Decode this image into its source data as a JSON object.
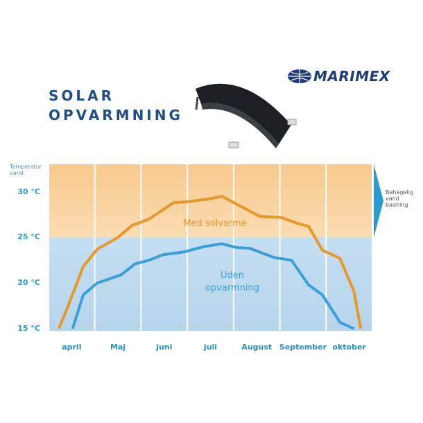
{
  "title": "SOLAR OPVARMNING",
  "logo": "MARIMEX",
  "chart_data": {
    "type": "line",
    "y_label": "Temperatur vand",
    "annotation": "Behagelig vand badning",
    "xlim": [
      0,
      7
    ],
    "xticks": [
      {
        "value": 0.5,
        "label": "april"
      },
      {
        "value": 1.5,
        "label": "Maj"
      },
      {
        "value": 2.5,
        "label": "juni"
      },
      {
        "value": 3.5,
        "label": "juli"
      },
      {
        "value": 4.5,
        "label": "August"
      },
      {
        "value": 5.5,
        "label": "September"
      },
      {
        "value": 6.5,
        "label": "oktober"
      }
    ],
    "ylim": [
      15,
      33
    ],
    "yticks": [
      {
        "value": 15,
        "label": "15 °C"
      },
      {
        "value": 20,
        "label": "20 °C"
      },
      {
        "value": 25,
        "label": "25 °C"
      },
      {
        "value": 30,
        "label": "30 °C"
      }
    ],
    "series": [
      {
        "name": "Med solvarme",
        "color": "#e8972a",
        "x": [
          0.22,
          0.37,
          0.75,
          1.05,
          1.5,
          1.8,
          2.17,
          2.7,
          3.0,
          3.45,
          3.75,
          4.12,
          4.57,
          5.02,
          5.4,
          5.62,
          5.92,
          6.3,
          6.6,
          6.75
        ],
        "values": [
          15,
          16.8,
          21.8,
          23.7,
          25,
          26.3,
          27,
          28.8,
          28.9,
          29.2,
          29.5,
          28.5,
          27.3,
          27.2,
          26.5,
          26.2,
          23.6,
          22.7,
          19.1,
          15
        ]
      },
      {
        "name": "Uden opvarmning",
        "color": "#3a9fd8",
        "x": [
          0.52,
          0.75,
          1.05,
          1.57,
          1.87,
          2.17,
          2.47,
          2.92,
          3.37,
          3.75,
          4.05,
          4.35,
          4.87,
          5.25,
          5.62,
          5.92,
          6.3,
          6.6
        ],
        "values": [
          15,
          18.7,
          20,
          20.9,
          22.1,
          22.5,
          23.1,
          23.4,
          24,
          24.3,
          23.9,
          23.8,
          22.8,
          22.5,
          19.8,
          18.7,
          15.7,
          15
        ]
      }
    ]
  }
}
